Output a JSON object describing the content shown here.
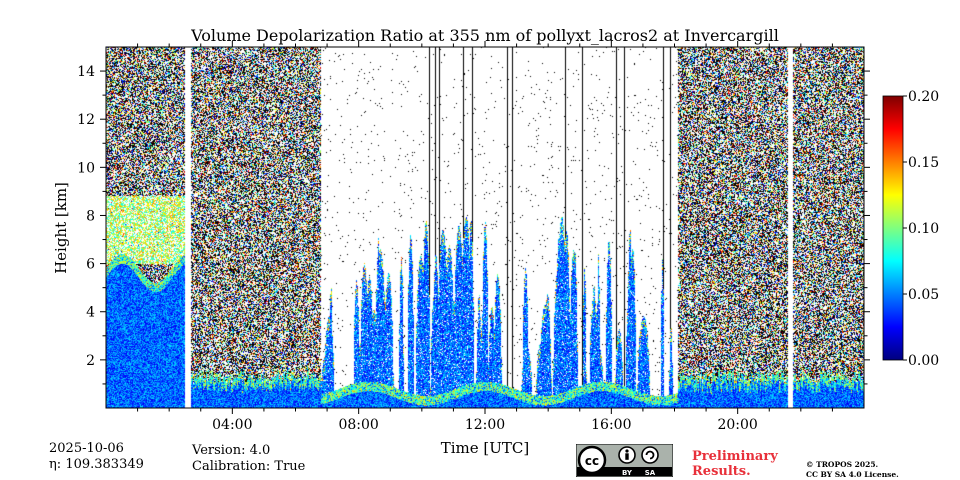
{
  "chart_data": {
    "type": "heatmap",
    "title": "Volume Depolarization Ratio at 355 nm of pollyxt_lacros2 at Invercargill",
    "xlabel": "Time [UTC]",
    "ylabel": "Height [km]",
    "xlim": [
      0,
      24
    ],
    "ylim": [
      0,
      15
    ],
    "x_ticks": [
      4,
      8,
      12,
      16,
      20
    ],
    "x_tick_labels": [
      "04:00",
      "08:00",
      "12:00",
      "16:00",
      "20:00"
    ],
    "y_ticks": [
      2,
      4,
      6,
      8,
      10,
      12,
      14
    ],
    "y_tick_labels": [
      "2",
      "4",
      "6",
      "8",
      "10",
      "12",
      "14"
    ],
    "colorbar": {
      "range": [
        0.0,
        0.2
      ],
      "ticks": [
        0.0,
        0.05,
        0.1,
        0.15,
        0.2
      ],
      "tick_labels": [
        "0.00",
        "0.05",
        "0.10",
        "0.15",
        "0.20"
      ],
      "colormap": "jet"
    },
    "data_gaps_hours": [
      [
        2.5,
        2.7
      ],
      [
        21.6,
        21.75
      ]
    ],
    "features": {
      "noisy_sky_periods_hours": [
        [
          0,
          6.8
        ],
        [
          18.1,
          24
        ]
      ],
      "clear_sky_periods_hours": [
        [
          6.8,
          18.1
        ]
      ],
      "low_depol_layer_top_km": 2.0,
      "high_depol_layer_km": [
        6,
        9
      ]
    }
  },
  "footer": {
    "date": "2025-10-06",
    "eta": "109.383349",
    "eta_prefix": "η: ",
    "version": "Version: 4.0",
    "calibration": "Calibration: True",
    "preliminary_1": "Preliminary",
    "preliminary_2": "Results.",
    "copyright_1": "© TROPOS 2025.",
    "copyright_2": "CC BY SA 4.0 License.",
    "license_badge": [
      "BY",
      "SA"
    ]
  },
  "colors": {
    "jet": [
      "#00007f",
      "#0000ff",
      "#007fff",
      "#00ffff",
      "#7fff7f",
      "#ffff00",
      "#ff7f00",
      "#ff0000",
      "#7f0000"
    ]
  }
}
